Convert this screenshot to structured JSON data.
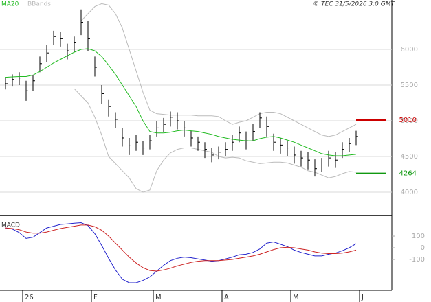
{
  "chart_data": [
    {
      "type": "ohlc",
      "source": "© TEC 31/5/2026 3:0 GMT",
      "categories": [
        null,
        null,
        null,
        "26",
        null,
        null,
        null,
        null,
        null,
        null,
        null,
        null,
        null,
        "F",
        null,
        null,
        null,
        null,
        null,
        null,
        null,
        null,
        "M",
        null,
        null,
        null,
        null,
        null,
        null,
        null,
        null,
        null,
        "A",
        null,
        null,
        null,
        null,
        null,
        null,
        null,
        null,
        null,
        "M",
        null,
        null,
        null,
        null,
        null,
        null,
        null,
        null,
        null,
        "J"
      ],
      "close": [
        5520,
        5580,
        5600,
        5420,
        5560,
        5800,
        5950,
        6180,
        6150,
        5980,
        6100,
        6380,
        6150,
        5750,
        5380,
        5200,
        5020,
        4760,
        4650,
        4700,
        4620,
        4720,
        4900,
        4950,
        5050,
        5000,
        4900,
        4760,
        4700,
        4600,
        4520,
        4560,
        4600,
        4700,
        4830,
        4720,
        4850,
        5040,
        4920,
        4700,
        4660,
        4620,
        4520,
        4480,
        4450,
        4330,
        4380,
        4480,
        4450,
        4600,
        4680,
        4780,
        null
      ],
      "high": [
        5600,
        5650,
        5680,
        5560,
        5640,
        5900,
        6060,
        6260,
        6240,
        6080,
        6180,
        6560,
        6400,
        5900,
        5500,
        5300,
        5120,
        4900,
        4760,
        4800,
        4720,
        4800,
        5000,
        5040,
        5130,
        5120,
        5000,
        4860,
        4780,
        4700,
        4620,
        4640,
        4700,
        4800,
        4920,
        4850,
        4960,
        5120,
        5060,
        4820,
        4760,
        4720,
        4640,
        4580,
        4560,
        4460,
        4480,
        4580,
        4560,
        4700,
        4760,
        4860,
        null
      ],
      "low": [
        5440,
        5480,
        5500,
        5280,
        5420,
        5680,
        5820,
        6060,
        6040,
        5860,
        5960,
        6200,
        5980,
        5620,
        5240,
        5060,
        4900,
        4640,
        4520,
        4580,
        4520,
        4600,
        4780,
        4840,
        4920,
        4880,
        4780,
        4640,
        4580,
        4480,
        4420,
        4460,
        4500,
        4580,
        4700,
        4600,
        4720,
        4900,
        4780,
        4580,
        4540,
        4500,
        4400,
        4360,
        4320,
        4220,
        4280,
        4360,
        4340,
        4480,
        4560,
        4660,
        null
      ],
      "series": [
        {
          "name": "MA20",
          "color": "#22bb22",
          "values": [
            5610,
            5615,
            5620,
            5620,
            5640,
            5690,
            5750,
            5810,
            5860,
            5910,
            5960,
            6000,
            6010,
            5980,
            5900,
            5780,
            5650,
            5500,
            5350,
            5200,
            5000,
            4850,
            4830,
            4830,
            4840,
            4860,
            4870,
            4860,
            4850,
            4830,
            4810,
            4780,
            4760,
            4740,
            4730,
            4720,
            4720,
            4750,
            4770,
            4780,
            4760,
            4730,
            4700,
            4660,
            4620,
            4580,
            4540,
            4520,
            4510,
            4510,
            4520,
            4530,
            null
          ]
        },
        {
          "name": "BBands",
          "color": "#bbbbbb",
          "upper": [
            null,
            null,
            null,
            null,
            null,
            null,
            null,
            null,
            null,
            null,
            null,
            6400,
            6500,
            6600,
            6640,
            6620,
            6500,
            6300,
            6000,
            5700,
            5400,
            5150,
            5100,
            5090,
            5080,
            5080,
            5080,
            5080,
            5070,
            5070,
            5070,
            5060,
            5000,
            4950,
            4980,
            5000,
            5050,
            5100,
            5120,
            5120,
            5100,
            5050,
            5000,
            4950,
            4900,
            4850,
            4800,
            4780,
            4800,
            4850,
            4900,
            4950,
            null
          ],
          "lower": [
            null,
            null,
            null,
            null,
            null,
            null,
            null,
            null,
            null,
            null,
            5450,
            5350,
            5250,
            5050,
            4800,
            4500,
            4400,
            4300,
            4200,
            4050,
            4000,
            4030,
            4300,
            4450,
            4550,
            4600,
            4620,
            4620,
            4600,
            4580,
            4560,
            4500,
            4480,
            4490,
            4480,
            4440,
            4420,
            4400,
            4410,
            4420,
            4420,
            4410,
            4380,
            4350,
            4300,
            4280,
            4240,
            4200,
            4220,
            4260,
            4290,
            4280,
            null
          ]
        }
      ],
      "levels": [
        {
          "value": 5010,
          "color": "#cc0000"
        },
        {
          "value": 4264,
          "color": "#119911"
        }
      ],
      "ylim": [
        3683,
        6692
      ],
      "yticks": [
        4000,
        4500,
        5000,
        5500,
        6000
      ],
      "grid": true
    },
    {
      "type": "line",
      "title": "MACD",
      "series": [
        {
          "color": "#2222cc",
          "values": [
            170,
            160,
            130,
            80,
            90,
            130,
            170,
            185,
            200,
            205,
            210,
            215,
            190,
            120,
            20,
            -90,
            -190,
            -270,
            -300,
            -300,
            -280,
            -250,
            -200,
            -150,
            -110,
            -90,
            -80,
            -85,
            -95,
            -105,
            -115,
            -110,
            -95,
            -80,
            -60,
            -55,
            -40,
            -10,
            40,
            50,
            30,
            10,
            -20,
            -40,
            -55,
            -70,
            -70,
            -55,
            -45,
            -25,
            0,
            35,
            null
          ]
        },
        {
          "color": "#cc2222",
          "values": [
            170,
            165,
            155,
            135,
            125,
            125,
            135,
            150,
            165,
            175,
            185,
            195,
            195,
            180,
            150,
            100,
            40,
            -20,
            -80,
            -130,
            -170,
            -195,
            -200,
            -190,
            -175,
            -155,
            -140,
            -125,
            -115,
            -110,
            -110,
            -110,
            -105,
            -100,
            -90,
            -80,
            -70,
            -55,
            -35,
            -15,
            0,
            5,
            0,
            -10,
            -20,
            -35,
            -45,
            -50,
            -50,
            -45,
            -35,
            -20,
            null
          ]
        }
      ],
      "ylim": [
        -359,
        265
      ],
      "yticks": [
        -100,
        0,
        100
      ]
    }
  ]
}
